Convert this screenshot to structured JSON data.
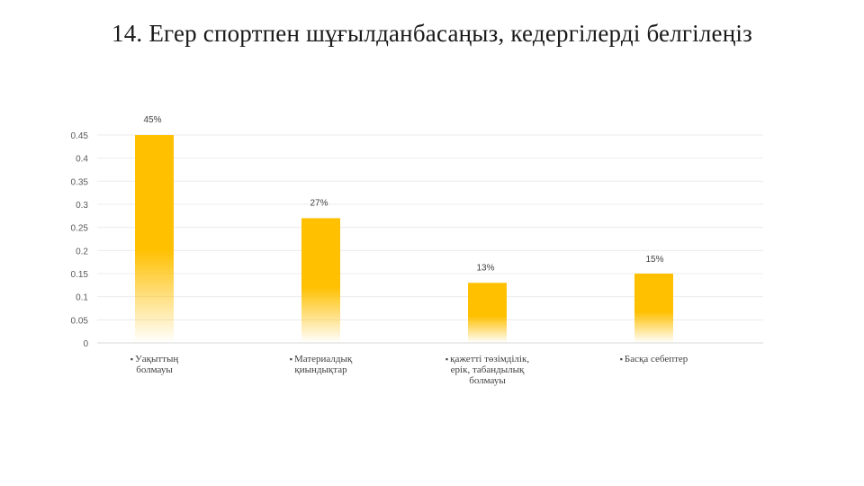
{
  "title": "14. Егер спортпен шұғылданбасаңыз, кедергілерді белгілеңіз",
  "chart_data": {
    "type": "bar",
    "categories": [
      [
        "Уақыттың",
        "болмауы"
      ],
      [
        "Материалдық",
        "қиындықтар"
      ],
      [
        "қажетті төзімділік,",
        "ерік, табандылық",
        "болмауы"
      ],
      [
        "Басқа себептер"
      ]
    ],
    "values": [
      0.45,
      0.27,
      0.13,
      0.15
    ],
    "data_labels": [
      "45%",
      "27%",
      "13%",
      "15%"
    ],
    "y_ticks": [
      "0",
      "0.05",
      "0.1",
      "0.15",
      "0.2",
      "0.25",
      "0.3",
      "0.35",
      "0.4",
      "0.45"
    ],
    "ylim": [
      0,
      0.45
    ],
    "grid": true,
    "bar_color": "#FFC000",
    "category_bullet": "▪"
  }
}
